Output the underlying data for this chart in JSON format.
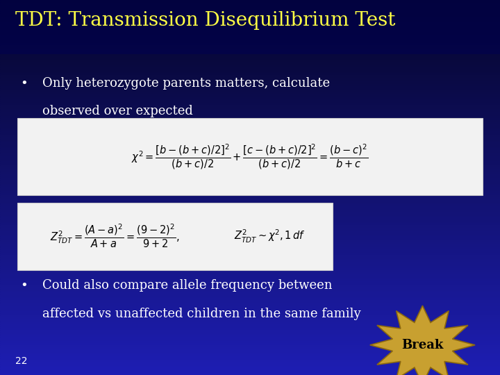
{
  "title": "TDT: Transmission Disequilibrium Test",
  "title_color": "#FFFF44",
  "bullet1_line1": "Only heterozygote parents matters, calculate",
  "bullet1_line2": "observed over expected",
  "bullet2_line1": "Could also compare allele frequency between",
  "bullet2_line2": "affected vs unaffected children in the same family",
  "formula1": "$\\chi^2 = \\dfrac{[b-(b+c)/2]^2}{(b+c)/2} + \\dfrac{[c-(b+c)/2]^2}{(b+c)/2} = \\dfrac{(b-c)^2}{b+c}$",
  "formula2_left": "$Z^2_{TDT} = \\dfrac{(A-a)^2}{A+a} = \\dfrac{(9-2)^2}{9+2},$",
  "formula2_right": "$Z^2_{TDT} \\sim \\chi^2, 1\\,df$",
  "page_number": "22",
  "text_color": "#FFFFFF",
  "formula_bg": "#F2F2F2",
  "formula_border": "#CCCCCC",
  "burst_color": "#C8A030",
  "burst_text": "Break",
  "bullet_color": "#FFFFFF",
  "title_fontsize": 20,
  "bullet_fontsize": 13,
  "formula1_fontsize": 10.5,
  "formula2_fontsize": 10.5,
  "page_fontsize": 10
}
